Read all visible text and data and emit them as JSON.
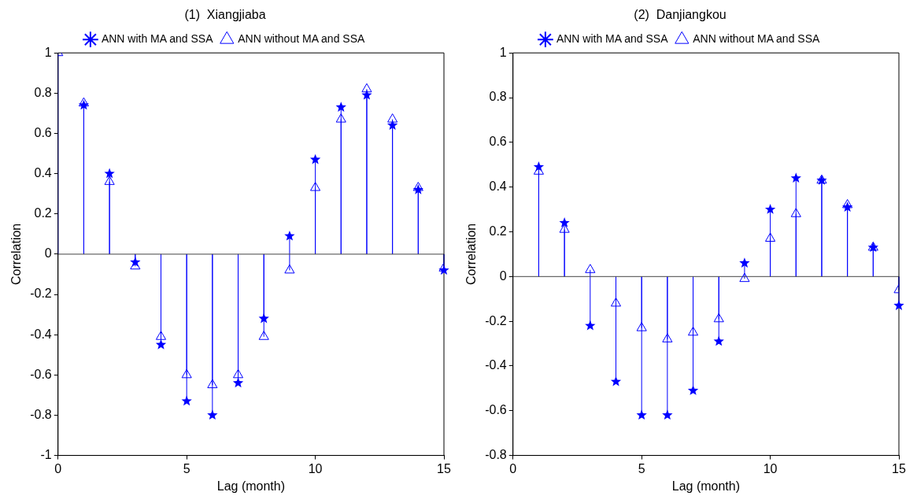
{
  "chart_data": [
    {
      "type": "lollipop",
      "title": "(1)  Xiangjiaba",
      "xlabel": "Lag (month)",
      "ylabel": "Correlation",
      "x": [
        0,
        1,
        2,
        3,
        4,
        5,
        6,
        7,
        8,
        9,
        10,
        11,
        12,
        13,
        14,
        15
      ],
      "xlim": [
        0,
        15
      ],
      "xticks": [
        0,
        5,
        10,
        15
      ],
      "ylim": [
        -1,
        1
      ],
      "yticks": [
        -1,
        -0.8,
        -0.6,
        -0.4,
        -0.2,
        0,
        0.2,
        0.4,
        0.6,
        0.8,
        1
      ],
      "grid": false,
      "legend": "top",
      "ref_lines": [
        {
          "axis": "y",
          "value": 0,
          "color": "#444444"
        }
      ],
      "series": [
        {
          "name": "ANN with MA and SSA",
          "color": "#0000ff",
          "marker": "star",
          "values": [
            null,
            0.74,
            0.4,
            -0.04,
            -0.45,
            -0.73,
            -0.8,
            -0.64,
            -0.32,
            0.09,
            0.47,
            0.73,
            0.79,
            0.64,
            0.32,
            -0.08
          ]
        },
        {
          "name": "ANN without MA and SSA",
          "color": "#0000ff",
          "marker": "triangle",
          "values": [
            1,
            0.75,
            0.36,
            -0.06,
            -0.41,
            -0.6,
            -0.65,
            -0.6,
            -0.41,
            -0.08,
            0.33,
            0.67,
            0.82,
            0.67,
            0.33,
            -0.07
          ]
        }
      ]
    },
    {
      "type": "lollipop",
      "title": "(2)  Danjiangkou",
      "xlabel": "Lag (month)",
      "ylabel": "Correlation",
      "x": [
        1,
        2,
        3,
        4,
        5,
        6,
        7,
        8,
        9,
        10,
        11,
        12,
        13,
        14,
        15
      ],
      "xlim": [
        0,
        15
      ],
      "xticks": [
        0,
        5,
        10,
        15
      ],
      "ylim": [
        -0.8,
        1
      ],
      "yticks": [
        -0.8,
        -0.6,
        -0.4,
        -0.2,
        0,
        0.2,
        0.4,
        0.6,
        0.8,
        1
      ],
      "grid": false,
      "legend": "top",
      "ref_lines": [
        {
          "axis": "y",
          "value": 0,
          "color": "#444444"
        }
      ],
      "series": [
        {
          "name": "ANN with MA and SSA",
          "color": "#0000ff",
          "marker": "star",
          "values": [
            0.49,
            0.24,
            -0.22,
            -0.47,
            -0.62,
            -0.62,
            -0.51,
            -0.29,
            0.06,
            0.3,
            0.44,
            0.43,
            0.31,
            0.13,
            -0.13
          ]
        },
        {
          "name": "ANN without MA and SSA",
          "color": "#0000ff",
          "marker": "triangle",
          "values": [
            0.47,
            0.21,
            0.03,
            -0.12,
            -0.23,
            -0.28,
            -0.25,
            -0.19,
            -0.01,
            0.17,
            0.28,
            0.43,
            0.32,
            0.13,
            -0.06
          ]
        }
      ]
    }
  ]
}
